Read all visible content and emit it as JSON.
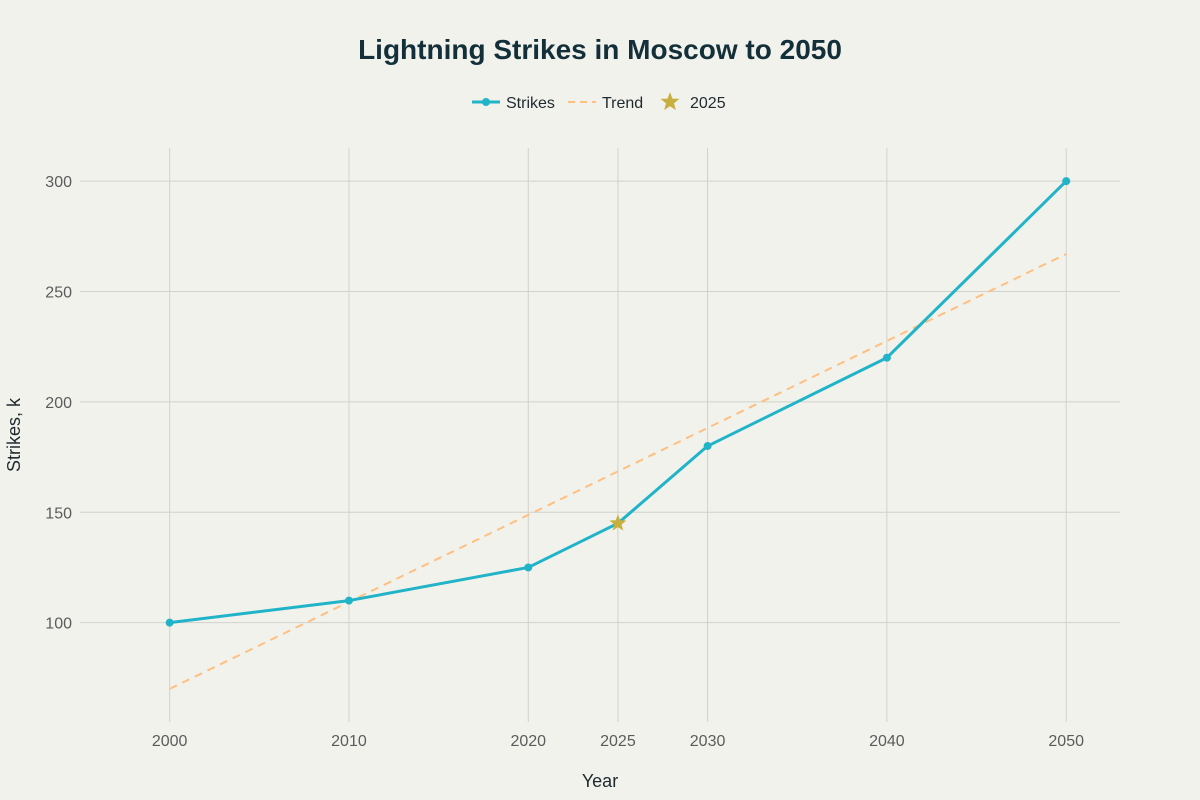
{
  "chart_data": {
    "type": "line",
    "title": "Lightning Strikes in Moscow to 2050",
    "xlabel": "Year",
    "ylabel": "Strikes, k",
    "x": [
      2000,
      2010,
      2020,
      2025,
      2030,
      2040,
      2050
    ],
    "x_tick_labels": [
      "2000",
      "2010",
      "2020",
      "2025",
      "2030",
      "2040",
      "2050"
    ],
    "y_ticks": [
      100,
      150,
      200,
      250,
      300
    ],
    "y_tick_labels": [
      "100",
      "150",
      "200",
      "250",
      "300"
    ],
    "xlim": [
      1995,
      2053
    ],
    "ylim": [
      55,
      315
    ],
    "grid": true,
    "legend_position": "top-center",
    "series": [
      {
        "name": "Strikes",
        "kind": "line",
        "color": "#21b3c8",
        "x": [
          2000,
          2010,
          2020,
          2025,
          2030,
          2040,
          2050
        ],
        "y": [
          100,
          110,
          125,
          145,
          180,
          220,
          300
        ]
      },
      {
        "name": "Trend",
        "kind": "dashed-line",
        "color": "#ffbf80",
        "x": [
          2000,
          2050
        ],
        "y": [
          70,
          267
        ]
      },
      {
        "name": "2025",
        "kind": "star-marker",
        "color": "#c8b040",
        "x": [
          2025
        ],
        "y": [
          145
        ]
      }
    ]
  }
}
